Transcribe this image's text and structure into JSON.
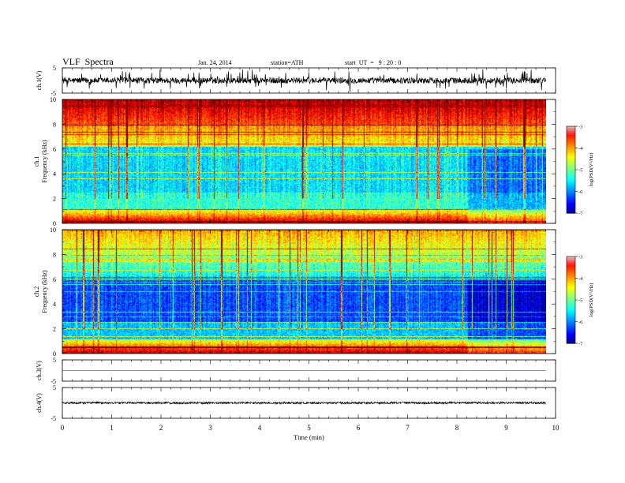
{
  "header": {
    "title": "VLF  Spectra",
    "date": "Jan. 24, 2014",
    "station": "station=ATH",
    "start": "start  UT  =   9 : 20 : 0"
  },
  "chart_data": [
    {
      "panel": "ch1-waveform",
      "type": "line",
      "ylabel": "ch.1(V)",
      "ylim": [
        -5,
        5
      ],
      "yticks": [
        "5",
        "-5"
      ],
      "baseline": 0,
      "noise_amplitude": 1.2
    },
    {
      "panel": "ch1-spectrogram",
      "type": "heatmap",
      "ylabel": "Frequency  (kHz)",
      "channel_label": "ch.1",
      "ylim": [
        0,
        10
      ],
      "yticks": [
        "0",
        "2",
        "4",
        "6",
        "8",
        "10"
      ],
      "colorbar": {
        "label": "log(PSD(V²/Hz)",
        "range": [
          -7,
          -3
        ],
        "ticks": [
          "-3",
          "-4",
          "-5",
          "-6",
          "-7"
        ]
      },
      "intensity_bias": 0.25,
      "change_time_min": 8.2
    },
    {
      "panel": "ch2-spectrogram",
      "type": "heatmap",
      "ylabel": "Frequency  (kHz)",
      "channel_label": "ch.2",
      "ylim": [
        0,
        10
      ],
      "yticks": [
        "0",
        "2",
        "4",
        "6",
        "8",
        "10"
      ],
      "colorbar": {
        "label": "log(PSD(V²/Hz)",
        "range": [
          -7,
          -3
        ],
        "ticks": [
          "-3",
          "-4",
          "-5",
          "-6",
          "-7"
        ]
      },
      "intensity_bias": 0.0,
      "change_time_min": 8.2
    },
    {
      "panel": "ch3-waveform",
      "type": "line",
      "ylabel": "ch.3(V)",
      "ylim": [
        -5,
        5
      ],
      "yticks": [
        "5",
        "-5"
      ],
      "baseline": 0,
      "noise_amplitude": 0.1
    },
    {
      "panel": "ch4-waveform",
      "type": "line",
      "ylabel": "ch.4(V)",
      "ylim": [
        -5,
        5
      ],
      "yticks": [
        "5",
        "-5"
      ],
      "baseline": 0,
      "noise_amplitude": 0.35
    }
  ],
  "x_axis": {
    "label": "Time  (min)",
    "range": [
      0,
      10
    ],
    "ticks": [
      "0",
      "1",
      "2",
      "3",
      "4",
      "5",
      "6",
      "7",
      "8",
      "9",
      "10"
    ],
    "data_end_min": 9.8
  }
}
